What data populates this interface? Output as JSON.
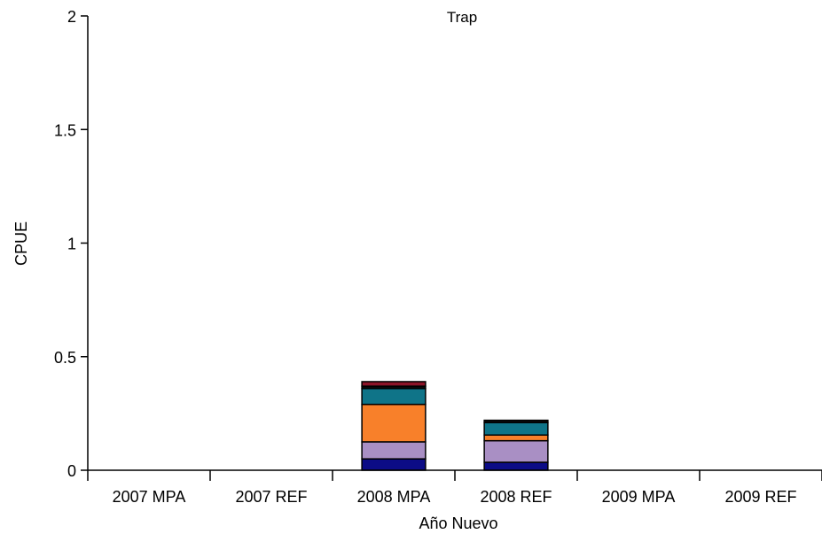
{
  "chart_data": {
    "type": "bar",
    "stacked": true,
    "title": "Trap",
    "xlabel": "Año Nuevo",
    "ylabel": "CPUE",
    "ylim": [
      0,
      2
    ],
    "yticks": [
      "0",
      "0.5",
      "1",
      "1.5",
      "2"
    ],
    "categories": [
      "2007 MPA",
      "2007 REF",
      "2008 MPA",
      "2008 REF",
      "2009 MPA",
      "2009 REF"
    ],
    "series": [
      {
        "color": "#0c0c86",
        "values": [
          0,
          0,
          0.05,
          0.035,
          0,
          0
        ]
      },
      {
        "color": "#a98fc4",
        "values": [
          0,
          0,
          0.075,
          0.095,
          0,
          0
        ]
      },
      {
        "color": "#f8802a",
        "values": [
          0,
          0,
          0.165,
          0.025,
          0,
          0
        ]
      },
      {
        "color": "#0f7488",
        "values": [
          0,
          0,
          0.07,
          0.055,
          0,
          0
        ]
      },
      {
        "color": "#0c0c0c",
        "values": [
          0,
          0,
          0.01,
          0.01,
          0,
          0
        ]
      },
      {
        "color": "#8c1428",
        "values": [
          0,
          0,
          0.02,
          0,
          0,
          0
        ]
      }
    ],
    "grid": false,
    "legend": "none"
  }
}
